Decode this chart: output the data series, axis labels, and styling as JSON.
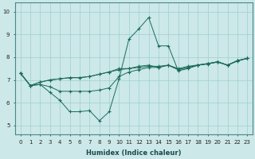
{
  "xlabel": "Humidex (Indice chaleur)",
  "bg_color": "#cce8e8",
  "grid_color": "#9fcfcf",
  "line_color": "#1a6b5a",
  "xlim": [
    -0.5,
    23.5
  ],
  "ylim": [
    4.6,
    10.4
  ],
  "yticks": [
    5,
    6,
    7,
    8,
    9,
    10
  ],
  "xticks": [
    0,
    1,
    2,
    3,
    4,
    5,
    6,
    7,
    8,
    9,
    10,
    11,
    12,
    13,
    14,
    15,
    16,
    17,
    18,
    19,
    20,
    21,
    22,
    23
  ],
  "series": [
    [
      7.3,
      6.75,
      6.8,
      6.45,
      6.1,
      5.6,
      5.6,
      5.65,
      5.2,
      5.6,
      7.05,
      8.8,
      9.25,
      9.75,
      8.5,
      8.5,
      7.4,
      7.5,
      7.65,
      7.7,
      7.8,
      7.65,
      7.85,
      7.95
    ],
    [
      7.3,
      6.75,
      6.9,
      7.0,
      7.05,
      7.1,
      7.1,
      7.15,
      7.25,
      7.35,
      7.45,
      7.5,
      7.55,
      7.6,
      7.6,
      7.65,
      7.45,
      7.55,
      7.65,
      7.72,
      7.8,
      7.65,
      7.85,
      7.95
    ],
    [
      7.3,
      6.75,
      6.9,
      7.0,
      7.05,
      7.1,
      7.1,
      7.15,
      7.25,
      7.35,
      7.5,
      7.5,
      7.6,
      7.65,
      7.55,
      7.65,
      7.5,
      7.6,
      7.66,
      7.72,
      7.78,
      7.65,
      7.83,
      7.95
    ],
    [
      7.3,
      6.75,
      6.8,
      6.7,
      6.5,
      6.5,
      6.5,
      6.5,
      6.55,
      6.65,
      7.15,
      7.35,
      7.45,
      7.55,
      7.55,
      7.65,
      7.45,
      7.55,
      7.65,
      7.72,
      7.8,
      7.65,
      7.85,
      7.95
    ]
  ]
}
